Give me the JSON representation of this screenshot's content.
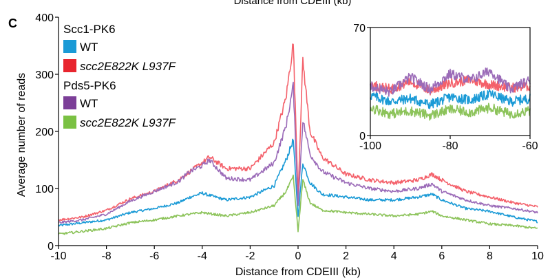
{
  "header_fragment": "Distance from CDEIII (kb)",
  "panel_label": "C",
  "colors": {
    "scc1_wt": "#1a9ad6",
    "scc1_mut": "#f4606a",
    "pds5_wt": "#9b6bb8",
    "pds5_mut": "#8cc35a",
    "legend_scc1_mut": "#e8252e",
    "legend_pds5_wt": "#7c3f98",
    "legend_pds5_mut": "#7ac143"
  },
  "chart_data": [
    {
      "type": "line",
      "role": "main",
      "xlabel": "Distance from CDEIII (kb)",
      "ylabel": "Average number of reads",
      "xlim": [
        -10,
        10
      ],
      "ylim": [
        0,
        400
      ],
      "xticks": [
        "-10",
        "-8",
        "-6",
        "-4",
        "-2",
        "0",
        "2",
        "4",
        "6",
        "8",
        "10"
      ],
      "yticks": [
        "0",
        "100",
        "200",
        "300",
        "400"
      ],
      "grid": false,
      "legend_position": "top-left",
      "legend_groups": [
        {
          "title": "Scc1-PK6",
          "entries": [
            {
              "label": "WT",
              "italic": false,
              "color": "#1a9ad6",
              "series": 0
            },
            {
              "label": "scc2E822K L937F",
              "italic": true,
              "color": "#e8252e",
              "series": 1
            }
          ]
        },
        {
          "title": "Pds5-PK6",
          "entries": [
            {
              "label": "WT",
              "italic": false,
              "color": "#7c3f98",
              "series": 2
            },
            {
              "label": "scc2E822K L937F",
              "italic": true,
              "color": "#7ac143",
              "series": 3
            }
          ]
        }
      ],
      "x": [
        -10,
        -9,
        -8,
        -7,
        -6,
        -5,
        -4.5,
        -4,
        -3.7,
        -3,
        -2,
        -1,
        -0.5,
        -0.2,
        0,
        0.2,
        0.5,
        1,
        2,
        3,
        4,
        5,
        5.6,
        6,
        7,
        8,
        9,
        10
      ],
      "series": [
        {
          "group": "Scc1-PK6",
          "label": "WT",
          "color": "#1a9ad6",
          "values": [
            35,
            40,
            45,
            58,
            65,
            75,
            85,
            92,
            88,
            80,
            85,
            105,
            150,
            185,
            50,
            145,
            110,
            90,
            85,
            80,
            80,
            85,
            90,
            80,
            65,
            60,
            50,
            42
          ]
        },
        {
          "group": "Scc1-PK6",
          "label": "scc2E822K L937F",
          "color": "#f4606a",
          "values": [
            45,
            50,
            62,
            82,
            95,
            115,
            130,
            145,
            155,
            135,
            135,
            180,
            260,
            355,
            90,
            325,
            200,
            155,
            125,
            115,
            110,
            115,
            125,
            115,
            95,
            85,
            75,
            68
          ]
        },
        {
          "group": "Pds5-PK6",
          "label": "WT",
          "color": "#9b6bb8",
          "values": [
            40,
            45,
            55,
            78,
            95,
            112,
            130,
            140,
            150,
            118,
            115,
            145,
            210,
            280,
            70,
            220,
            160,
            130,
            110,
            100,
            95,
            100,
            108,
            95,
            80,
            70,
            65,
            58
          ]
        },
        {
          "group": "Pds5-PK6",
          "label": "scc2E822K L937F",
          "color": "#8cc35a",
          "values": [
            20,
            25,
            30,
            40,
            45,
            52,
            55,
            58,
            56,
            52,
            58,
            70,
            95,
            120,
            25,
            115,
            75,
            62,
            58,
            55,
            52,
            55,
            60,
            52,
            45,
            38,
            35,
            30
          ]
        }
      ]
    },
    {
      "type": "line",
      "role": "inset",
      "xlim": [
        -100,
        -60
      ],
      "ylim": [
        0,
        70
      ],
      "xticks": [
        "-100",
        "-80",
        "-60"
      ],
      "yticks": [
        "0",
        "70"
      ],
      "x": [
        -100,
        -95,
        -90,
        -85,
        -80,
        -75,
        -70,
        -65,
        -60
      ],
      "series": [
        {
          "label": "Scc1-PK6 WT",
          "color": "#1a9ad6",
          "values": [
            26,
            22,
            24,
            20,
            25,
            23,
            27,
            22,
            24
          ]
        },
        {
          "label": "Scc1-PK6 scc2E822K L937F",
          "color": "#f4606a",
          "values": [
            33,
            30,
            35,
            29,
            34,
            36,
            33,
            31,
            32
          ]
        },
        {
          "label": "Pds5-PK6 WT",
          "color": "#9b6bb8",
          "values": [
            32,
            28,
            38,
            30,
            40,
            36,
            42,
            30,
            36
          ]
        },
        {
          "label": "Pds5-PK6 scc2E822K L937F",
          "color": "#8cc35a",
          "values": [
            18,
            14,
            16,
            13,
            17,
            15,
            18,
            14,
            16
          ]
        }
      ]
    }
  ]
}
